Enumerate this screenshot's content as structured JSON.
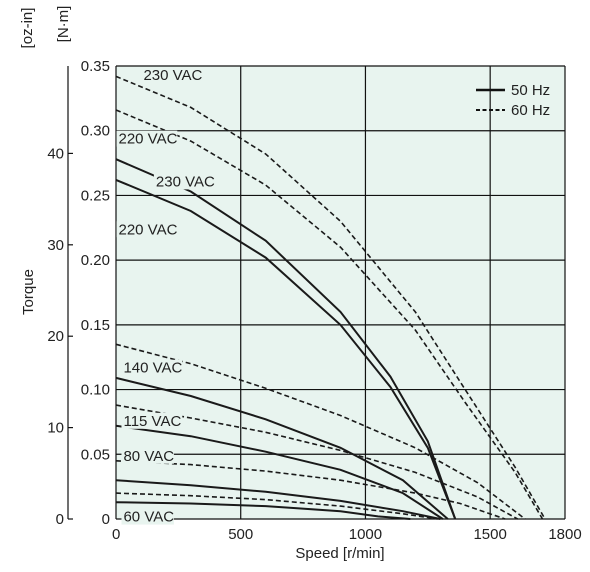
{
  "chart_data": {
    "type": "line",
    "xlabel": "Speed [r/min]",
    "ylabel": "Torque",
    "xlim": [
      0,
      1800
    ],
    "ylim": [
      0,
      0.35
    ],
    "x_ticks": [
      0,
      500,
      1000,
      1500,
      1800
    ],
    "y_ticks_nm": [
      0,
      0.05,
      0.1,
      0.15,
      0.2,
      0.25,
      0.3,
      0.35
    ],
    "y_ticks_ozin": [
      0,
      10,
      20,
      30,
      40
    ],
    "y_unit_left": "[oz-in]",
    "y_unit_right": "[N·m]",
    "grid": true,
    "background": "#e8f4ef",
    "legend": {
      "placement": "top-right",
      "items": [
        {
          "label": "50 Hz",
          "style": "solid"
        },
        {
          "label": "60 Hz",
          "style": "dashed"
        }
      ]
    },
    "series": [
      {
        "voltage": "230 VAC",
        "freq": "60 Hz",
        "x": [
          0,
          300,
          600,
          900,
          1200,
          1400,
          1600,
          1720
        ],
        "y": [
          0.342,
          0.318,
          0.282,
          0.23,
          0.16,
          0.1,
          0.04,
          0.0
        ]
      },
      {
        "voltage": "220 VAC",
        "freq": "60 Hz",
        "x": [
          0,
          300,
          600,
          900,
          1200,
          1400,
          1600,
          1710
        ],
        "y": [
          0.316,
          0.292,
          0.258,
          0.21,
          0.146,
          0.09,
          0.036,
          0.0
        ]
      },
      {
        "voltage": "230 VAC",
        "freq": "50 Hz",
        "x": [
          0,
          300,
          600,
          900,
          1100,
          1250,
          1360
        ],
        "y": [
          0.278,
          0.253,
          0.215,
          0.16,
          0.11,
          0.06,
          0.0
        ]
      },
      {
        "voltage": "220 VAC",
        "freq": "50 Hz",
        "x": [
          0,
          300,
          600,
          900,
          1100,
          1250,
          1360
        ],
        "y": [
          0.262,
          0.238,
          0.202,
          0.15,
          0.102,
          0.055,
          0.0
        ]
      },
      {
        "voltage": "140 VAC",
        "freq": "60 Hz",
        "x": [
          0,
          300,
          600,
          900,
          1200,
          1450,
          1640
        ],
        "y": [
          0.135,
          0.12,
          0.101,
          0.08,
          0.055,
          0.028,
          0.0
        ]
      },
      {
        "voltage": "140 VAC",
        "freq": "50 Hz",
        "x": [
          0,
          300,
          600,
          900,
          1150,
          1330
        ],
        "y": [
          0.109,
          0.095,
          0.077,
          0.055,
          0.03,
          0.0
        ]
      },
      {
        "voltage": "115 VAC",
        "freq": "60 Hz",
        "x": [
          0,
          300,
          600,
          900,
          1200,
          1450,
          1610
        ],
        "y": [
          0.088,
          0.078,
          0.067,
          0.053,
          0.036,
          0.017,
          0.0
        ]
      },
      {
        "voltage": "115 VAC",
        "freq": "50 Hz",
        "x": [
          0,
          300,
          600,
          900,
          1150,
          1310
        ],
        "y": [
          0.072,
          0.064,
          0.052,
          0.038,
          0.02,
          0.0
        ]
      },
      {
        "voltage": "80 VAC",
        "freq": "60 Hz",
        "x": [
          0,
          300,
          600,
          900,
          1200,
          1380,
          1560
        ],
        "y": [
          0.045,
          0.042,
          0.037,
          0.03,
          0.02,
          0.012,
          0.0
        ]
      },
      {
        "voltage": "80 VAC",
        "freq": "50 Hz",
        "x": [
          0,
          300,
          600,
          900,
          1150,
          1300
        ],
        "y": [
          0.03,
          0.026,
          0.021,
          0.014,
          0.006,
          0.0
        ]
      },
      {
        "voltage": "60 VAC",
        "freq": "60 Hz",
        "x": [
          0,
          300,
          600,
          900,
          1150,
          1290
        ],
        "y": [
          0.02,
          0.018,
          0.015,
          0.01,
          0.004,
          0.0
        ]
      },
      {
        "voltage": "60 VAC",
        "freq": "50 Hz",
        "x": [
          0,
          300,
          600,
          900,
          1050,
          1180
        ],
        "y": [
          0.013,
          0.012,
          0.01,
          0.006,
          0.002,
          0.0
        ]
      }
    ],
    "curve_labels": [
      {
        "text": "230 VAC",
        "x": 110,
        "y": 0.339
      },
      {
        "text": "220 VAC",
        "x": 10,
        "y": 0.29
      },
      {
        "text": "230 VAC",
        "x": 160,
        "y": 0.257
      },
      {
        "text": "220 VAC",
        "x": 10,
        "y": 0.22
      },
      {
        "text": "140 VAC",
        "x": 30,
        "y": 0.113
      },
      {
        "text": "115 VAC",
        "x": 30,
        "y": 0.072
      },
      {
        "text": "80 VAC",
        "x": 30,
        "y": 0.045
      },
      {
        "text": "60 VAC",
        "x": 30,
        "y": -0.002
      }
    ]
  }
}
